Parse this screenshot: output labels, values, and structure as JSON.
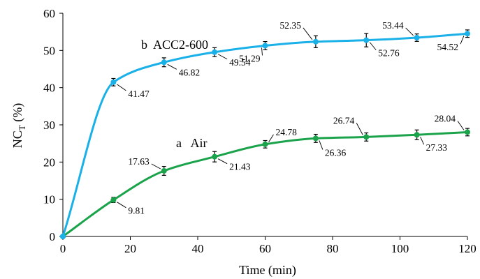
{
  "chart_data": {
    "type": "line",
    "title": "",
    "xlabel": "Time (min)",
    "ylabel_main": "NC",
    "ylabel_sub": "T",
    "ylabel_unit": " (%)",
    "xlim": [
      0,
      120
    ],
    "ylim": [
      0,
      60
    ],
    "xticks": [
      0,
      20,
      40,
      60,
      80,
      100,
      120
    ],
    "yticks": [
      0,
      10,
      20,
      30,
      40,
      50,
      60
    ],
    "grid": false,
    "series": [
      {
        "name": "a   Air",
        "color": "#1aa34a",
        "x": [
          0,
          15,
          30,
          45,
          60,
          75,
          90,
          105,
          120
        ],
        "y": [
          0,
          9.81,
          17.63,
          21.43,
          24.78,
          26.36,
          26.74,
          27.33,
          28.04
        ],
        "err": [
          0,
          0.7,
          1.2,
          1.4,
          1.0,
          1.1,
          1.1,
          1.3,
          1.0
        ],
        "labels": [
          "",
          "9.81",
          "17.63",
          "21.43",
          "24.78",
          "26.36",
          "26.74",
          "27.33",
          "28.04"
        ]
      },
      {
        "name": "b  ACC2-600",
        "color": "#1ab0e8",
        "x": [
          0,
          15,
          30,
          45,
          60,
          75,
          90,
          105,
          120
        ],
        "y": [
          0,
          41.47,
          46.82,
          49.54,
          51.29,
          52.35,
          52.76,
          53.44,
          54.52
        ],
        "err": [
          0,
          1.0,
          1.2,
          1.2,
          1.1,
          1.6,
          1.8,
          1.0,
          1.0
        ],
        "labels": [
          "",
          "41.47",
          "46.82",
          "49.54",
          "51.29",
          "52.35",
          "52.76",
          "53.44",
          "54.52"
        ]
      }
    ]
  }
}
